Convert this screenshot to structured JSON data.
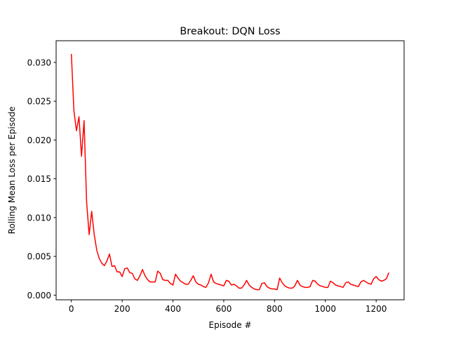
{
  "chart_data": {
    "type": "line",
    "title": "Breakout: DQN Loss",
    "xlabel": "Episode #",
    "ylabel": "Rolling Mean Loss per Episode",
    "xlim": [
      -60,
      1310
    ],
    "ylim": [
      -0.0006,
      0.0328
    ],
    "xticks": [
      0,
      200,
      400,
      600,
      800,
      1000,
      1200
    ],
    "xtick_labels": [
      "0",
      "200",
      "400",
      "600",
      "800",
      "1000",
      "1200"
    ],
    "yticks": [
      0.0,
      0.005,
      0.01,
      0.015,
      0.02,
      0.025,
      0.03
    ],
    "ytick_labels": [
      "0.000",
      "0.005",
      "0.010",
      "0.015",
      "0.020",
      "0.025",
      "0.030"
    ],
    "grid": false,
    "legend": "none",
    "colors": {
      "line": "#ff0000"
    },
    "series": [
      {
        "x": [
          0,
          10,
          20,
          30,
          40,
          50,
          60,
          70,
          80,
          90,
          100,
          110,
          120,
          130,
          140,
          150,
          160,
          170,
          180,
          190,
          200,
          210,
          220,
          230,
          240,
          250,
          260,
          270,
          280,
          290,
          300,
          310,
          320,
          330,
          340,
          350,
          360,
          370,
          380,
          390,
          400,
          410,
          420,
          430,
          440,
          450,
          460,
          470,
          480,
          490,
          500,
          510,
          520,
          530,
          540,
          550,
          560,
          570,
          580,
          590,
          600,
          610,
          620,
          630,
          640,
          650,
          660,
          670,
          680,
          690,
          700,
          710,
          720,
          730,
          740,
          750,
          760,
          770,
          780,
          790,
          800,
          810,
          820,
          830,
          840,
          850,
          860,
          870,
          880,
          890,
          900,
          910,
          920,
          930,
          940,
          950,
          960,
          970,
          980,
          990,
          1000,
          1010,
          1020,
          1030,
          1040,
          1050,
          1060,
          1070,
          1080,
          1090,
          1100,
          1110,
          1120,
          1130,
          1140,
          1150,
          1160,
          1170,
          1180,
          1190,
          1200,
          1210,
          1220,
          1230,
          1240,
          1250
        ],
        "values": [
          0.0311,
          0.0238,
          0.0212,
          0.023,
          0.0179,
          0.0225,
          0.012,
          0.0078,
          0.0108,
          0.0078,
          0.0058,
          0.0047,
          0.0041,
          0.0038,
          0.0044,
          0.0053,
          0.0037,
          0.0038,
          0.003,
          0.003,
          0.0024,
          0.0034,
          0.0035,
          0.0029,
          0.0028,
          0.0021,
          0.0019,
          0.0025,
          0.0033,
          0.0025,
          0.002,
          0.0017,
          0.0017,
          0.0017,
          0.0031,
          0.0028,
          0.002,
          0.0019,
          0.0019,
          0.0015,
          0.0013,
          0.0027,
          0.0022,
          0.0018,
          0.0016,
          0.0014,
          0.0014,
          0.0019,
          0.0025,
          0.0017,
          0.0014,
          0.0013,
          0.0011,
          0.001,
          0.0016,
          0.0027,
          0.0017,
          0.0015,
          0.0014,
          0.0013,
          0.0012,
          0.0019,
          0.0018,
          0.0013,
          0.0014,
          0.0012,
          0.0009,
          0.0009,
          0.0013,
          0.0019,
          0.0013,
          0.001,
          0.0008,
          0.0007,
          0.0007,
          0.0015,
          0.0016,
          0.0011,
          0.0009,
          0.0008,
          0.0008,
          0.0007,
          0.0022,
          0.0016,
          0.0012,
          0.001,
          0.0009,
          0.0009,
          0.0012,
          0.0019,
          0.0013,
          0.0011,
          0.001,
          0.001,
          0.0011,
          0.0019,
          0.0018,
          0.0014,
          0.0012,
          0.0011,
          0.001,
          0.001,
          0.0018,
          0.0016,
          0.0013,
          0.0012,
          0.0011,
          0.001,
          0.0016,
          0.0017,
          0.0014,
          0.0013,
          0.0012,
          0.0011,
          0.0017,
          0.0019,
          0.0017,
          0.0015,
          0.0014,
          0.0021,
          0.0024,
          0.002,
          0.0018,
          0.0019,
          0.0021,
          0.0029
        ]
      }
    ]
  }
}
